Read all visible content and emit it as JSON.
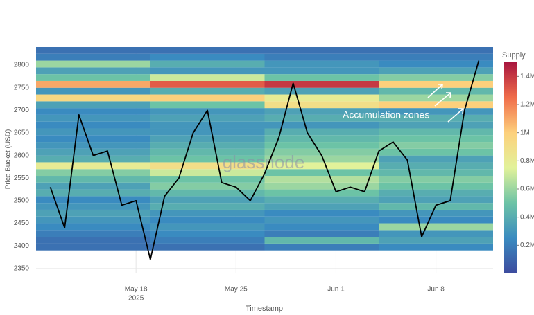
{
  "chart_data": {
    "type": "heatmap",
    "x_label": "Timestamp",
    "y_label": "Price Bucket (USD)",
    "colorbar_title": "Supply",
    "annotation": "Accumulation zones",
    "watermark": "glassnode",
    "xlim": [
      "2025-05-11",
      "2025-06-12"
    ],
    "xticks": [
      {
        "value": "2025-05-18",
        "label": "May 18"
      },
      {
        "value": "2025-05-25",
        "label": "May 25"
      },
      {
        "value": "2025-06-01",
        "label": "Jun 1"
      },
      {
        "value": "2025-06-08",
        "label": "Jun 8"
      }
    ],
    "xtick_year": "2025",
    "ylim": [
      2339,
      2840
    ],
    "yticks": [
      2350,
      2400,
      2450,
      2500,
      2550,
      2600,
      2650,
      2700,
      2750,
      2800
    ],
    "grid": true,
    "time_bins": [
      "2025-05-11",
      "2025-05-19",
      "2025-05-27",
      "2025-06-04",
      "2025-06-12"
    ],
    "price_bins": [
      2390,
      2405,
      2420,
      2435,
      2450,
      2465,
      2480,
      2495,
      2510,
      2525,
      2540,
      2555,
      2570,
      2585,
      2600,
      2615,
      2630,
      2645,
      2660,
      2675,
      2690,
      2705,
      2720,
      2735,
      2750,
      2765,
      2780,
      2795,
      2810,
      2825,
      2840
    ],
    "supply": [
      [
        150000,
        150000,
        200000,
        250000
      ],
      [
        150000,
        200000,
        450000,
        350000
      ],
      [
        200000,
        250000,
        200000,
        300000
      ],
      [
        250000,
        300000,
        250000,
        600000
      ],
      [
        300000,
        250000,
        300000,
        250000
      ],
      [
        350000,
        300000,
        250000,
        300000
      ],
      [
        300000,
        400000,
        350000,
        450000
      ],
      [
        250000,
        350000,
        400000,
        350000
      ],
      [
        400000,
        450000,
        500000,
        400000
      ],
      [
        350000,
        550000,
        600000,
        500000
      ],
      [
        450000,
        500000,
        650000,
        550000
      ],
      [
        550000,
        700000,
        500000,
        450000
      ],
      [
        800000,
        900000,
        750000,
        400000
      ],
      [
        400000,
        500000,
        600000,
        350000
      ],
      [
        350000,
        450000,
        550000,
        500000
      ],
      [
        300000,
        400000,
        500000,
        550000
      ],
      [
        250000,
        350000,
        450000,
        500000
      ],
      [
        300000,
        300000,
        400000,
        450000
      ],
      [
        250000,
        300000,
        300000,
        350000
      ],
      [
        300000,
        350000,
        400000,
        400000
      ],
      [
        250000,
        300000,
        350000,
        300000
      ],
      [
        350000,
        500000,
        900000,
        1000000
      ],
      [
        950000,
        1000000,
        800000,
        600000
      ],
      [
        300000,
        400000,
        350000,
        450000
      ],
      [
        1100000,
        1300000,
        1400000,
        1000000
      ],
      [
        500000,
        700000,
        500000,
        550000
      ],
      [
        350000,
        300000,
        300000,
        350000
      ],
      [
        600000,
        400000,
        300000,
        250000
      ],
      [
        200000,
        250000,
        200000,
        200000
      ],
      [
        150000,
        150000,
        150000,
        150000
      ]
    ],
    "zlim": [
      0,
      1500000
    ],
    "zticks": [
      {
        "value": 200000,
        "label": "0.2M"
      },
      {
        "value": 400000,
        "label": "0.4M"
      },
      {
        "value": 600000,
        "label": "0.6M"
      },
      {
        "value": 800000,
        "label": "0.8M"
      },
      {
        "value": 1000000,
        "label": "1M"
      },
      {
        "value": 1200000,
        "label": "1.2M"
      },
      {
        "value": 1400000,
        "label": "1.4M"
      }
    ],
    "colorscale": [
      "#3d4b9e",
      "#3a8bc0",
      "#6cc3a6",
      "#e2f29a",
      "#fdd07c",
      "#f06d4a",
      "#a8163f"
    ],
    "price": {
      "color": "#000000",
      "x": [
        "2025-05-12",
        "2025-05-13",
        "2025-05-14",
        "2025-05-15",
        "2025-05-16",
        "2025-05-17",
        "2025-05-18",
        "2025-05-19",
        "2025-05-20",
        "2025-05-21",
        "2025-05-22",
        "2025-05-23",
        "2025-05-24",
        "2025-05-25",
        "2025-05-26",
        "2025-05-27",
        "2025-05-28",
        "2025-05-29",
        "2025-05-30",
        "2025-05-31",
        "2025-06-01",
        "2025-06-02",
        "2025-06-03",
        "2025-06-04",
        "2025-06-05",
        "2025-06-06",
        "2025-06-07",
        "2025-06-08",
        "2025-06-09",
        "2025-06-10",
        "2025-06-11"
      ],
      "values": [
        2530,
        2440,
        2690,
        2600,
        2610,
        2490,
        2500,
        2370,
        2510,
        2550,
        2650,
        2700,
        2540,
        2530,
        2500,
        2560,
        2640,
        2760,
        2650,
        2600,
        2520,
        2530,
        2520,
        2610,
        2630,
        2590,
        2420,
        2490,
        2500,
        2700,
        2810
      ]
    }
  }
}
